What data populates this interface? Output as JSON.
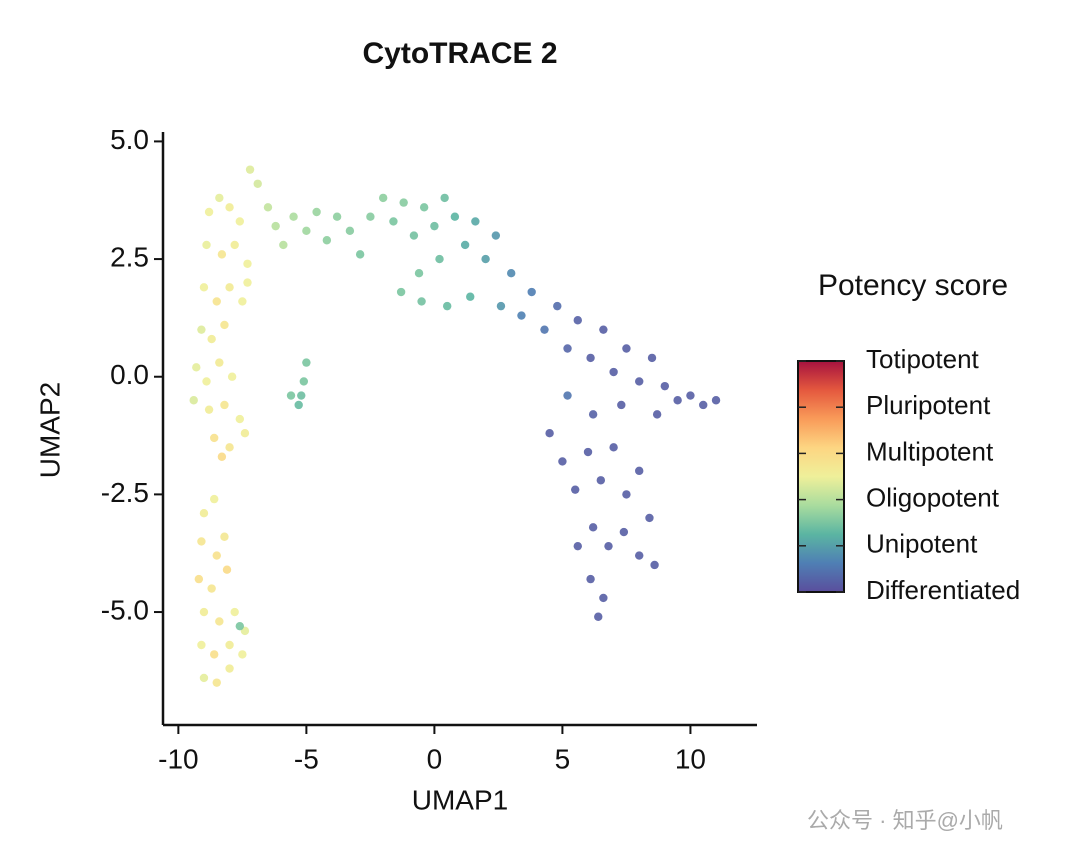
{
  "chart_data": {
    "type": "scatter",
    "title": "CytoTRACE 2",
    "x_label": "UMAP1",
    "y_label": "UMAP2",
    "xlim": [
      -10.6,
      12.6
    ],
    "ylim": [
      -7.4,
      5.2
    ],
    "xticks": [
      -10,
      -5,
      0,
      5,
      10
    ],
    "yticks": [
      {
        "value": 5,
        "label": "5.0"
      },
      2.5,
      {
        "value": 0,
        "label": "0.0"
      },
      -2.5,
      {
        "value": -5,
        "label": "-5.0"
      }
    ],
    "x": [
      -8.8,
      -8.4,
      -8,
      -7.6,
      -8.9,
      -8.3,
      -7.8,
      -7.3,
      -9,
      -8.5,
      -8,
      -7.5,
      -9.1,
      -8.7,
      -8.2,
      -9.3,
      -8.9,
      -8.4,
      -7.9,
      -9.4,
      -8.8,
      -8.2,
      -7.6,
      -8.6,
      -8,
      -7.4,
      -8.3,
      -7.3,
      -7.2,
      -6.9,
      -9,
      -8.6,
      -9.1,
      -8.5,
      -8.2,
      -9.2,
      -8.7,
      -8.1,
      -9,
      -8.4,
      -7.8,
      -7.4,
      -9.1,
      -8.6,
      -8,
      -7.5,
      -9,
      -8.5,
      -8,
      -7.6,
      -5,
      -5.1,
      -5.2,
      -5.3,
      -5.6,
      -6.5,
      -6.2,
      -5.9,
      -5.5,
      -5,
      -4.6,
      -4.2,
      -3.8,
      -3.3,
      -2.9,
      -2.5,
      -2,
      -1.6,
      -1.2,
      -0.8,
      -0.4,
      0,
      0.4,
      0.8,
      0.2,
      -0.6,
      -1.3,
      -0.5,
      0.5,
      1.2,
      1.6,
      2,
      2.4,
      1.4,
      2.6,
      3,
      3.4,
      3.8,
      4.3,
      4.8,
      5.2,
      5.6,
      6.1,
      6.6,
      7,
      7.5,
      8,
      8.5,
      9,
      9.5,
      10,
      10.5,
      11,
      8.7,
      7.3,
      4.5,
      5,
      5.5,
      6,
      6.5,
      7,
      7.5,
      8,
      8.4,
      6.2,
      6.8,
      7.4,
      8,
      8.6,
      5.6,
      6.1,
      6.6,
      6.4,
      5.2,
      6.2
    ],
    "y": [
      3.5,
      3.8,
      3.6,
      3.3,
      2.8,
      2.6,
      2.8,
      2.4,
      1.9,
      1.6,
      1.9,
      1.6,
      1,
      0.8,
      1.1,
      0.2,
      -0.1,
      0.3,
      0,
      -0.5,
      -0.7,
      -0.6,
      -0.9,
      -1.3,
      -1.5,
      -1.2,
      -1.7,
      2,
      4.4,
      4.1,
      -2.9,
      -2.6,
      -3.5,
      -3.8,
      -3.4,
      -4.3,
      -4.5,
      -4.1,
      -5,
      -5.2,
      -5,
      -5.4,
      -5.7,
      -5.9,
      -5.7,
      -5.9,
      -6.4,
      -6.5,
      -6.2,
      -5.3,
      0.3,
      -0.1,
      -0.4,
      -0.6,
      -0.4,
      3.6,
      3.2,
      2.8,
      3.4,
      3.1,
      3.5,
      2.9,
      3.4,
      3.1,
      2.6,
      3.4,
      3.8,
      3.3,
      3.7,
      3,
      3.6,
      3.2,
      3.8,
      3.4,
      2.5,
      2.2,
      1.8,
      1.6,
      1.5,
      2.8,
      3.3,
      2.5,
      3,
      1.7,
      1.5,
      2.2,
      1.3,
      1.8,
      1,
      1.5,
      0.6,
      1.2,
      0.4,
      1,
      0.1,
      0.6,
      -0.1,
      0.4,
      -0.2,
      -0.5,
      -0.4,
      -0.6,
      -0.5,
      -0.8,
      -0.6,
      -1.2,
      -1.8,
      -2.4,
      -1.6,
      -2.2,
      -1.5,
      -2.5,
      -2,
      -3,
      -3.2,
      -3.6,
      -3.3,
      -3.8,
      -4,
      -3.6,
      -4.3,
      -4.7,
      -5.1,
      -0.4,
      -0.8
    ],
    "potency": [
      0.5,
      0.48,
      0.52,
      0.5,
      0.49,
      0.55,
      0.52,
      0.5,
      0.5,
      0.56,
      0.53,
      0.5,
      0.47,
      0.52,
      0.55,
      0.48,
      0.5,
      0.53,
      0.5,
      0.46,
      0.52,
      0.55,
      0.5,
      0.57,
      0.55,
      0.52,
      0.6,
      0.5,
      0.47,
      0.45,
      0.52,
      0.5,
      0.55,
      0.57,
      0.54,
      0.58,
      0.55,
      0.6,
      0.52,
      0.55,
      0.5,
      0.48,
      0.5,
      0.58,
      0.52,
      0.5,
      0.48,
      0.55,
      0.52,
      0.3,
      0.3,
      0.3,
      0.28,
      0.27,
      0.3,
      0.42,
      0.4,
      0.4,
      0.38,
      0.36,
      0.35,
      0.33,
      0.33,
      0.32,
      0.3,
      0.32,
      0.33,
      0.3,
      0.32,
      0.29,
      0.3,
      0.28,
      0.28,
      0.25,
      0.28,
      0.3,
      0.3,
      0.29,
      0.27,
      0.23,
      0.22,
      0.2,
      0.18,
      0.25,
      0.18,
      0.15,
      0.13,
      0.12,
      0.1,
      0.08,
      0.06,
      0.05,
      0.04,
      0.04,
      0.04,
      0.04,
      0.04,
      0.04,
      0.04,
      0.04,
      0.04,
      0.04,
      0.04,
      0.04,
      0.04,
      0.04,
      0.04,
      0.04,
      0.04,
      0.04,
      0.04,
      0.04,
      0.04,
      0.04,
      0.04,
      0.04,
      0.04,
      0.04,
      0.04,
      0.04,
      0.04,
      0.04,
      0.04,
      0.1,
      0.05
    ],
    "colorbar": {
      "title": "Potency score",
      "lim": [
        0,
        1
      ],
      "colors": [
        "#5a4e9d",
        "#4f7fb4",
        "#5bb5a2",
        "#a9dc9e",
        "#eff09a",
        "#fdd582",
        "#f99b59",
        "#e4583e",
        "#a6123f"
      ],
      "ticks": [
        {
          "value": 1,
          "label": "Totipotent"
        },
        {
          "value": 0.8,
          "label": "Pluripotent"
        },
        {
          "value": 0.6,
          "label": "Multipotent"
        },
        {
          "value": 0.4,
          "label": "Oligopotent"
        },
        {
          "value": 0.2,
          "label": "Unipotent"
        },
        {
          "value": 0,
          "label": "Differentiated"
        }
      ]
    }
  },
  "watermark": "公众号 · 知乎@小帆"
}
